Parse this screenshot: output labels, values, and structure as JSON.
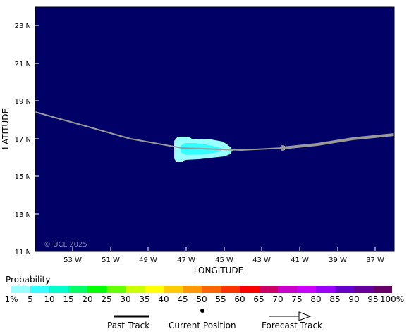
{
  "map": {
    "lat_ticks": [
      "23 N",
      "21 N",
      "19 N",
      "17 N",
      "15 N",
      "13 N",
      "11 N"
    ],
    "lon_ticks": [
      "53 W",
      "51 W",
      "49 W",
      "47 W",
      "45 W",
      "43 W",
      "41 W",
      "39 W",
      "37 W"
    ],
    "xlabel": "LONGITUDE",
    "ylabel": "LATITUDE",
    "watermark": "© UCL 2025",
    "ocean_color": "#000066",
    "track_color": "#999999"
  },
  "legend": {
    "title": "Probability",
    "labels": [
      "1%",
      "5",
      "10",
      "15",
      "20",
      "25",
      "30",
      "35",
      "40",
      "45",
      "50",
      "55",
      "60",
      "65",
      "70",
      "75",
      "80",
      "85",
      "90",
      "95",
      "100%"
    ],
    "colors": [
      "#99ffff",
      "#33ffff",
      "#00ffcc",
      "#00ff66",
      "#00ff00",
      "#66ff00",
      "#ccff00",
      "#ffff00",
      "#ffcc00",
      "#ff9900",
      "#ff6600",
      "#ff3300",
      "#ff0000",
      "#cc0066",
      "#cc00cc",
      "#cc00ff",
      "#9900ff",
      "#6600cc",
      "#660099",
      "#660066"
    ]
  },
  "keys": {
    "past_track": "Past Track",
    "current_position": "Current Position",
    "forecast_track": "Forecast Track"
  }
}
